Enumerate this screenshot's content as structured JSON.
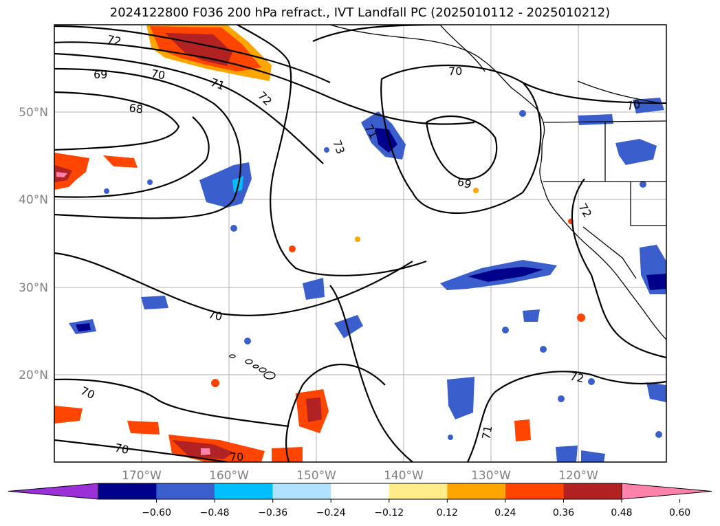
{
  "title": "2024122800 F036 200 hPa refract., IVT Landfall PC (2025010112 - 2025010212)",
  "map": {
    "latitude_labels": [
      "50°N",
      "40°N",
      "30°N",
      "20°N"
    ],
    "longitude_labels": [
      "170°W",
      "160°W",
      "150°W",
      "140°W",
      "130°W",
      "120°W"
    ],
    "contour_labels": [
      "72",
      "69",
      "70",
      "71",
      "72",
      "68",
      "70",
      "73",
      "71",
      "70",
      "69",
      "72",
      "70",
      "70",
      "70",
      "70",
      "71",
      "72"
    ],
    "contour_color": "#000000",
    "coastline_color": "#000000",
    "gridline_color": "#b0b0b0"
  },
  "colorbar": {
    "tick_labels": [
      "−0.60",
      "−0.48",
      "−0.36",
      "−0.24",
      "−0.12",
      "0.12",
      "0.24",
      "0.36",
      "0.48",
      "0.60"
    ],
    "colors": [
      "#9b30d9",
      "#00008b",
      "#3a5fcd",
      "#00bfff",
      "#b0e2ff",
      "#ffffff",
      "#ffec8b",
      "#ffa500",
      "#ff4500",
      "#b22222",
      "#ff82ab"
    ]
  }
}
